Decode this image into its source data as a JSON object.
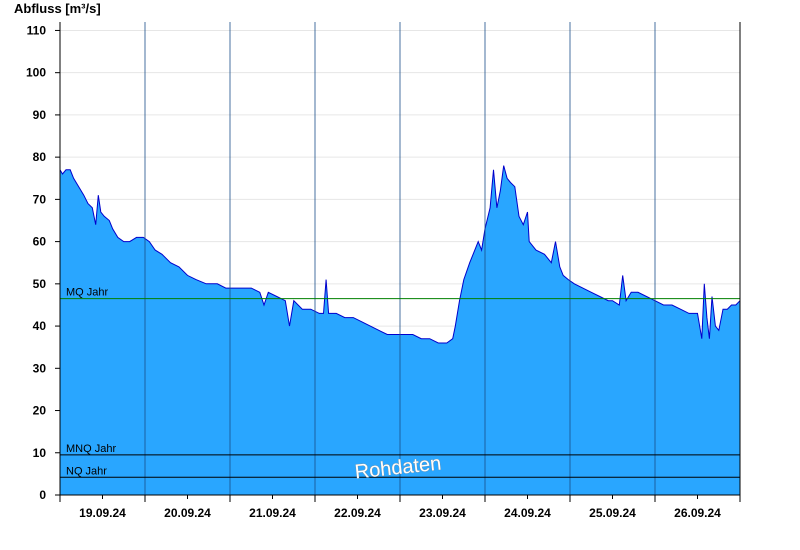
{
  "chart_data": {
    "type": "area",
    "ylabel": "Abfluss [m³/s]",
    "xlabel": "",
    "ylim": [
      0,
      112
    ],
    "yticks": [
      0,
      10,
      20,
      30,
      40,
      50,
      60,
      70,
      80,
      90,
      100,
      110
    ],
    "xlim": [
      0,
      8
    ],
    "date_ticks": [
      {
        "label": "19.09.24",
        "day": 0
      },
      {
        "label": "20.09.24",
        "day": 1
      },
      {
        "label": "21.09.24",
        "day": 2
      },
      {
        "label": "22.09.24",
        "day": 3
      },
      {
        "label": "23.09.24",
        "day": 4
      },
      {
        "label": "24.09.24",
        "day": 5
      },
      {
        "label": "25.09.24",
        "day": 6
      },
      {
        "label": "26.09.24",
        "day": 7
      }
    ],
    "grid": true,
    "fill_color": "#29a6ff",
    "line_color": "#0000cc",
    "reference_lines": [
      {
        "label": "MQ Jahr",
        "value": 46.5,
        "color": "#008000"
      },
      {
        "label": "MNQ Jahr",
        "value": 9.5,
        "color": "#000000"
      },
      {
        "label": "NQ Jahr",
        "value": 4.2,
        "color": "#000000"
      }
    ],
    "watermark": "Rohdaten",
    "series": [
      {
        "points": [
          [
            0.0,
            77
          ],
          [
            0.03,
            76
          ],
          [
            0.07,
            77
          ],
          [
            0.12,
            77
          ],
          [
            0.16,
            75
          ],
          [
            0.22,
            73
          ],
          [
            0.28,
            71
          ],
          [
            0.33,
            69
          ],
          [
            0.38,
            68
          ],
          [
            0.42,
            64
          ],
          [
            0.45,
            71
          ],
          [
            0.48,
            67
          ],
          [
            0.52,
            66
          ],
          [
            0.58,
            65
          ],
          [
            0.62,
            63
          ],
          [
            0.68,
            61
          ],
          [
            0.75,
            60
          ],
          [
            0.82,
            60
          ],
          [
            0.9,
            61
          ],
          [
            0.98,
            61
          ],
          [
            1.05,
            60
          ],
          [
            1.12,
            58
          ],
          [
            1.2,
            57
          ],
          [
            1.3,
            55
          ],
          [
            1.4,
            54
          ],
          [
            1.5,
            52
          ],
          [
            1.6,
            51
          ],
          [
            1.72,
            50
          ],
          [
            1.85,
            50
          ],
          [
            1.95,
            49
          ],
          [
            2.05,
            49
          ],
          [
            2.15,
            49
          ],
          [
            2.25,
            49
          ],
          [
            2.35,
            48
          ],
          [
            2.4,
            45
          ],
          [
            2.45,
            48
          ],
          [
            2.55,
            47
          ],
          [
            2.65,
            46
          ],
          [
            2.7,
            40
          ],
          [
            2.75,
            46
          ],
          [
            2.85,
            44
          ],
          [
            2.95,
            44
          ],
          [
            3.05,
            43
          ],
          [
            3.1,
            43
          ],
          [
            3.13,
            51
          ],
          [
            3.16,
            43
          ],
          [
            3.25,
            43
          ],
          [
            3.35,
            42
          ],
          [
            3.45,
            42
          ],
          [
            3.55,
            41
          ],
          [
            3.65,
            40
          ],
          [
            3.75,
            39
          ],
          [
            3.85,
            38
          ],
          [
            3.95,
            38
          ],
          [
            4.05,
            38
          ],
          [
            4.15,
            38
          ],
          [
            4.25,
            37
          ],
          [
            4.35,
            37
          ],
          [
            4.45,
            36
          ],
          [
            4.55,
            36
          ],
          [
            4.62,
            37
          ],
          [
            4.65,
            40
          ],
          [
            4.7,
            46
          ],
          [
            4.75,
            51
          ],
          [
            4.82,
            55
          ],
          [
            4.88,
            58
          ],
          [
            4.92,
            60
          ],
          [
            4.96,
            58
          ],
          [
            5.0,
            63
          ],
          [
            5.06,
            68
          ],
          [
            5.1,
            77
          ],
          [
            5.14,
            68
          ],
          [
            5.18,
            72
          ],
          [
            5.22,
            78
          ],
          [
            5.26,
            75
          ],
          [
            5.3,
            74
          ],
          [
            5.35,
            73
          ],
          [
            5.4,
            66
          ],
          [
            5.45,
            64
          ],
          [
            5.5,
            67
          ],
          [
            5.52,
            60
          ],
          [
            5.6,
            58
          ],
          [
            5.7,
            57
          ],
          [
            5.78,
            55
          ],
          [
            5.83,
            60
          ],
          [
            5.88,
            54
          ],
          [
            5.92,
            52
          ],
          [
            5.98,
            51
          ],
          [
            6.05,
            50
          ],
          [
            6.15,
            49
          ],
          [
            6.25,
            48
          ],
          [
            6.35,
            47
          ],
          [
            6.45,
            46
          ],
          [
            6.5,
            46
          ],
          [
            6.58,
            45
          ],
          [
            6.62,
            52
          ],
          [
            6.66,
            46
          ],
          [
            6.72,
            48
          ],
          [
            6.8,
            48
          ],
          [
            6.9,
            47
          ],
          [
            7.0,
            46
          ],
          [
            7.1,
            45
          ],
          [
            7.2,
            45
          ],
          [
            7.3,
            44
          ],
          [
            7.4,
            43
          ],
          [
            7.5,
            43
          ],
          [
            7.55,
            37
          ],
          [
            7.58,
            50
          ],
          [
            7.61,
            42
          ],
          [
            7.64,
            37
          ],
          [
            7.67,
            47
          ],
          [
            7.71,
            40
          ],
          [
            7.75,
            39
          ],
          [
            7.8,
            44
          ],
          [
            7.85,
            44
          ],
          [
            7.9,
            45
          ],
          [
            7.95,
            45
          ],
          [
            8.0,
            46
          ]
        ]
      }
    ]
  }
}
